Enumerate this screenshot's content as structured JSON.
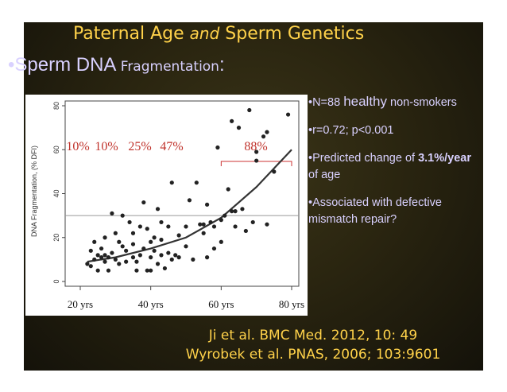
{
  "slide": {
    "title_pre": "Paternal Age ",
    "title_italic": "and",
    "title_post": " Sperm Genetics",
    "heading_bullet": "•Sperm DNA ",
    "heading_rest": "Fragmentation",
    "heading_colon": ":"
  },
  "bullets": [
    {
      "pre": "•N=88 ",
      "big": "healthy",
      "post": " non-smokers"
    },
    {
      "text": "•r=0.72; p<0.001"
    },
    {
      "pre": "•Predicted change of ",
      "bold": "3.1%/year",
      "post": " of age"
    },
    {
      "text": "•Associated with defective mismatch repair?"
    }
  ],
  "refs": [
    "Ji et al. BMC Med. 2012, 10: 49",
    "Wyrobek et al. PNAS, 2006; 103:9601"
  ],
  "chart_data": {
    "type": "scatter",
    "ylabel": "DNA Fragmentation, (% DFI)",
    "ylim": [
      0,
      80
    ],
    "yticks": [
      "0",
      "20",
      "40",
      "60",
      "80"
    ],
    "xlim": [
      20,
      80
    ],
    "xticks": [
      "20 yrs",
      "40 yrs",
      "60 yrs",
      "80 yrs"
    ],
    "reference_line_y": 30,
    "annotations": [
      "10%",
      "10%",
      "25%",
      "47%",
      "88%"
    ],
    "fit": {
      "x": [
        22,
        30,
        40,
        50,
        60,
        70,
        80
      ],
      "y": [
        9,
        11,
        15,
        20,
        29,
        43,
        60
      ]
    },
    "points": [
      [
        22,
        8
      ],
      [
        23,
        7
      ],
      [
        23,
        14
      ],
      [
        24,
        10
      ],
      [
        24,
        18
      ],
      [
        25,
        12
      ],
      [
        25,
        5
      ],
      [
        26,
        15
      ],
      [
        26,
        11
      ],
      [
        27,
        9
      ],
      [
        27,
        20
      ],
      [
        27,
        12
      ],
      [
        28,
        11
      ],
      [
        28,
        5
      ],
      [
        29,
        31
      ],
      [
        29,
        13
      ],
      [
        30,
        10
      ],
      [
        30,
        22
      ],
      [
        31,
        8
      ],
      [
        31,
        18
      ],
      [
        32,
        30
      ],
      [
        32,
        16
      ],
      [
        33,
        14
      ],
      [
        33,
        9
      ],
      [
        34,
        27
      ],
      [
        35,
        11
      ],
      [
        35,
        22
      ],
      [
        35,
        17
      ],
      [
        36,
        9
      ],
      [
        36,
        5
      ],
      [
        37,
        12
      ],
      [
        37,
        25
      ],
      [
        38,
        36
      ],
      [
        38,
        15
      ],
      [
        39,
        5
      ],
      [
        39,
        24
      ],
      [
        40,
        11
      ],
      [
        40,
        5
      ],
      [
        40,
        18
      ],
      [
        41,
        20
      ],
      [
        41,
        14
      ],
      [
        42,
        33
      ],
      [
        42,
        8
      ],
      [
        43,
        27
      ],
      [
        43,
        12
      ],
      [
        43,
        19
      ],
      [
        44,
        6
      ],
      [
        45,
        25
      ],
      [
        45,
        13
      ],
      [
        46,
        45
      ],
      [
        46,
        10
      ],
      [
        47,
        12
      ],
      [
        48,
        21
      ],
      [
        48,
        11
      ],
      [
        50,
        25
      ],
      [
        50,
        16
      ],
      [
        51,
        37
      ],
      [
        52,
        10
      ],
      [
        53,
        45
      ],
      [
        54,
        26
      ],
      [
        55,
        26
      ],
      [
        55,
        22
      ],
      [
        56,
        35
      ],
      [
        56,
        11
      ],
      [
        57,
        27
      ],
      [
        58,
        25
      ],
      [
        58,
        15
      ],
      [
        59,
        61
      ],
      [
        60,
        28
      ],
      [
        60,
        18
      ],
      [
        61,
        30
      ],
      [
        62,
        42
      ],
      [
        63,
        73
      ],
      [
        63,
        32
      ],
      [
        64,
        25
      ],
      [
        64,
        32
      ],
      [
        65,
        70
      ],
      [
        66,
        33
      ],
      [
        67,
        23
      ],
      [
        68,
        78
      ],
      [
        69,
        27
      ],
      [
        70,
        55
      ],
      [
        70,
        59
      ],
      [
        72,
        66
      ],
      [
        73,
        26
      ],
      [
        73,
        68
      ],
      [
        75,
        50
      ],
      [
        79,
        76
      ]
    ]
  }
}
